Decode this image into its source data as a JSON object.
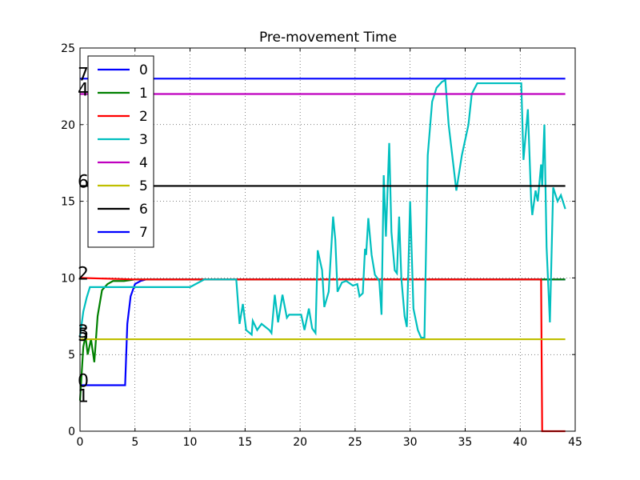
{
  "chart_data": {
    "type": "line",
    "title": "Pre-movement Time",
    "xlim": [
      0,
      45
    ],
    "ylim": [
      0,
      25
    ],
    "xticks": [
      0,
      5,
      10,
      15,
      20,
      25,
      30,
      35,
      40,
      45
    ],
    "yticks": [
      0,
      5,
      10,
      15,
      20,
      25
    ],
    "grid": true,
    "legend": "upper left",
    "series": [
      {
        "name": "0",
        "color": "#0000ff",
        "x": [
          0,
          4.1,
          4.3,
          4.6,
          5,
          5.5,
          6,
          44.1
        ],
        "values": [
          3,
          3,
          7,
          8.8,
          9.6,
          9.8,
          9.9,
          9.9
        ]
      },
      {
        "name": "1",
        "color": "#008000",
        "x": [
          0,
          0.3,
          0.5,
          0.7,
          1,
          1.3,
          1.6,
          2,
          2.5,
          3,
          4,
          5,
          44.1
        ],
        "values": [
          2,
          5.5,
          6.2,
          5,
          6,
          4.5,
          7.5,
          9.2,
          9.6,
          9.8,
          9.8,
          9.9,
          9.9
        ]
      },
      {
        "name": "2",
        "color": "#ff0000",
        "x": [
          0,
          5,
          41.9,
          42.0,
          44.1
        ],
        "values": [
          10,
          9.9,
          9.9,
          0,
          0
        ]
      },
      {
        "name": "3",
        "color": "#00bfbf",
        "x": [
          0,
          0.3,
          0.6,
          0.9,
          10,
          11.3,
          14.2,
          14.5,
          14.8,
          15.1,
          15.6,
          15.7,
          16.1,
          16.5,
          17.2,
          17.4,
          17.7,
          18.0,
          18.4,
          18.8,
          19.0,
          20.1,
          20.4,
          20.8,
          21.1,
          21.4,
          21.6,
          22.0,
          22.2,
          22.6,
          23.0,
          23.2,
          23.4,
          23.8,
          24.2,
          24.8,
          25.2,
          25.4,
          25.7,
          25.9,
          26.0,
          26.2,
          26.5,
          26.8,
          27.2,
          27.4,
          27.6,
          27.8,
          28.1,
          28.3,
          28.6,
          28.8,
          29.0,
          29.2,
          29.5,
          29.7,
          30.0,
          30.3,
          30.7,
          31.0,
          31.3,
          31.6,
          32.0,
          32.4,
          32.9,
          33.2,
          33.5,
          34.2,
          34.7,
          35.3,
          35.6,
          36.1,
          40.1,
          40.3,
          40.7,
          41.0,
          41.1,
          41.4,
          41.6,
          41.9,
          42.0,
          42.2,
          42.4,
          42.7,
          43.0,
          43.4,
          43.7,
          44.1
        ],
        "values": [
          6.2,
          7.8,
          8.7,
          9.4,
          9.4,
          9.9,
          9.9,
          7.0,
          8.3,
          6.6,
          6.3,
          7.2,
          6.6,
          7.0,
          6.6,
          6.4,
          8.9,
          7.1,
          8.9,
          7.4,
          7.6,
          7.6,
          6.6,
          8.0,
          6.7,
          6.4,
          11.8,
          10.5,
          8.1,
          9.1,
          14.0,
          12.5,
          9.1,
          9.7,
          9.8,
          9.5,
          9.6,
          8.8,
          9.0,
          11.9,
          11.5,
          13.9,
          11.5,
          10.2,
          9.8,
          7.6,
          16.7,
          12.7,
          18.8,
          13.0,
          10.5,
          10.3,
          14.0,
          10.0,
          7.5,
          6.8,
          15.0,
          8.0,
          6.6,
          6.1,
          6.1,
          18.0,
          21.5,
          22.4,
          22.8,
          22.9,
          20.0,
          15.7,
          18.0,
          20.0,
          22.0,
          22.7,
          22.7,
          17.7,
          21.0,
          15.0,
          14.1,
          15.7,
          15.0,
          17.4,
          16.0,
          20.0,
          12.0,
          7.1,
          15.9,
          15.0,
          15.4,
          14.5
        ]
      },
      {
        "name": "4",
        "color": "#bf00bf",
        "x": [
          0,
          44.1
        ],
        "values": [
          22,
          22
        ]
      },
      {
        "name": "5",
        "color": "#bfbf00",
        "x": [
          0,
          44.1
        ],
        "values": [
          6,
          6
        ]
      },
      {
        "name": "6",
        "color": "#000000",
        "x": [
          0,
          44.1
        ],
        "values": [
          16,
          16
        ]
      },
      {
        "name": "7",
        "color": "#0000ff",
        "x": [
          0,
          44.1
        ],
        "values": [
          23,
          23
        ]
      }
    ]
  }
}
